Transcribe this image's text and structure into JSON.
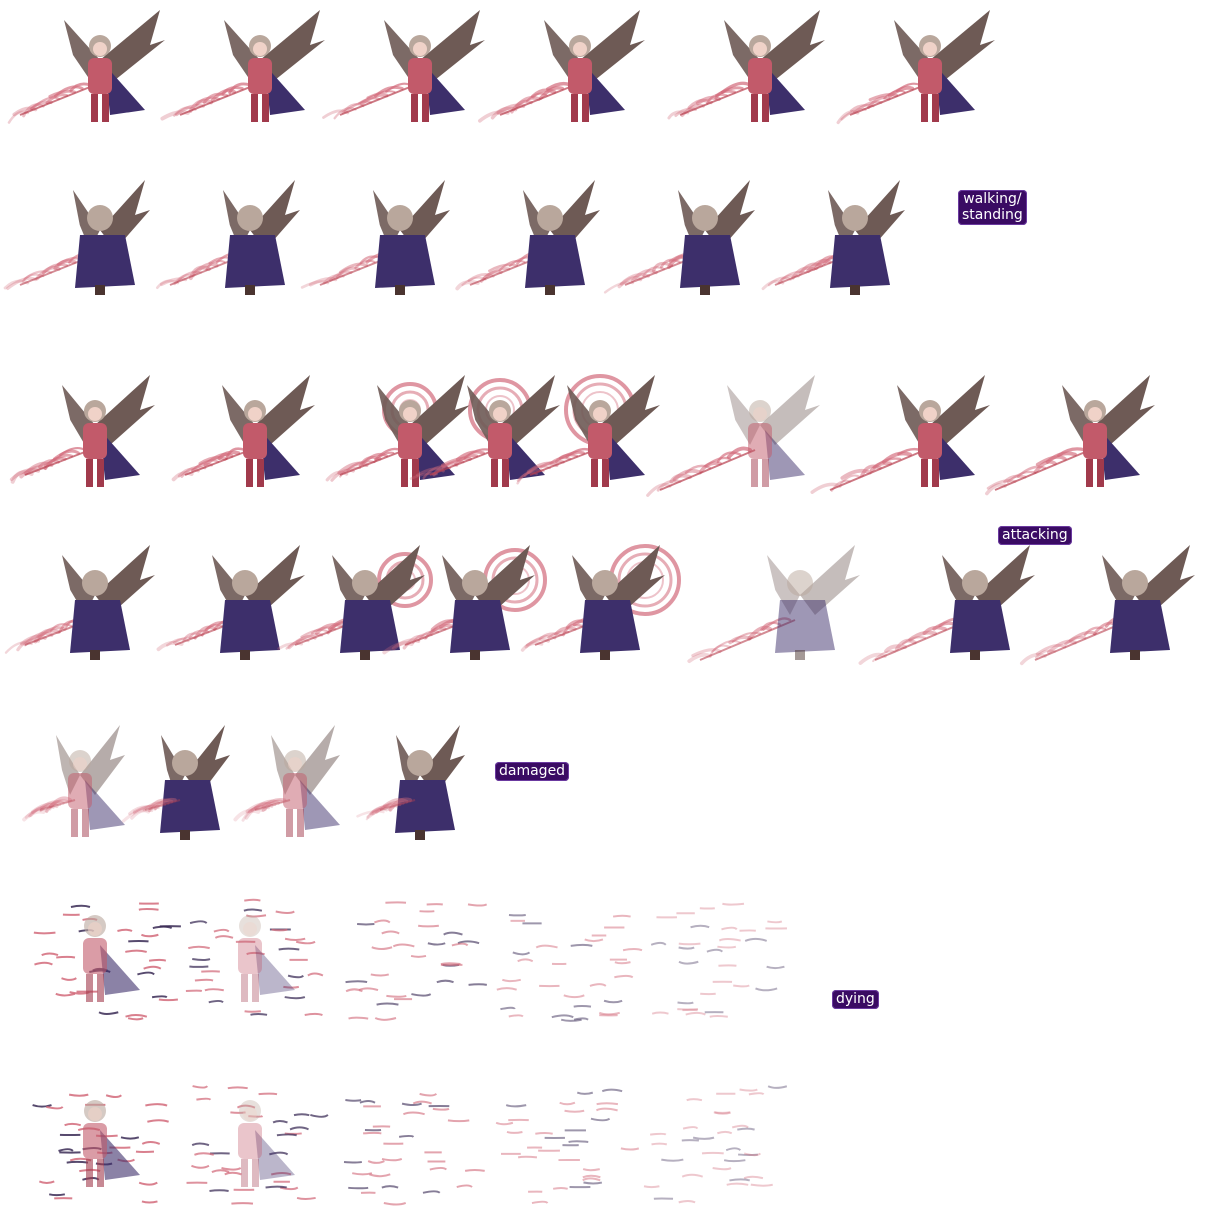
{
  "sections": {
    "walking": {
      "label": "walking/\nstanding"
    },
    "attacking": {
      "label": "attacking"
    },
    "damaged": {
      "label": "damaged"
    },
    "dying": {
      "label": "dying"
    }
  },
  "colors": {
    "background": "#ffffff",
    "label_bg": "#3a0b63",
    "label_text": "#ffffff",
    "wing": "#6e5a55",
    "armor": "#c25a6a",
    "cloak": "#3d2f6b",
    "flame": "#d26a7a",
    "hair": "#b9a79c"
  },
  "rows": [
    {
      "name": "walk-front",
      "section": "walking",
      "frames": 6
    },
    {
      "name": "walk-back",
      "section": "walking",
      "frames": 6
    },
    {
      "name": "attack-front",
      "section": "attacking",
      "frames": 8
    },
    {
      "name": "attack-back",
      "section": "attacking",
      "frames": 8
    },
    {
      "name": "damaged",
      "section": "damaged",
      "frames": 4
    },
    {
      "name": "dying-front",
      "section": "dying",
      "frames": 5
    },
    {
      "name": "dying-back",
      "section": "dying",
      "frames": 5
    }
  ]
}
